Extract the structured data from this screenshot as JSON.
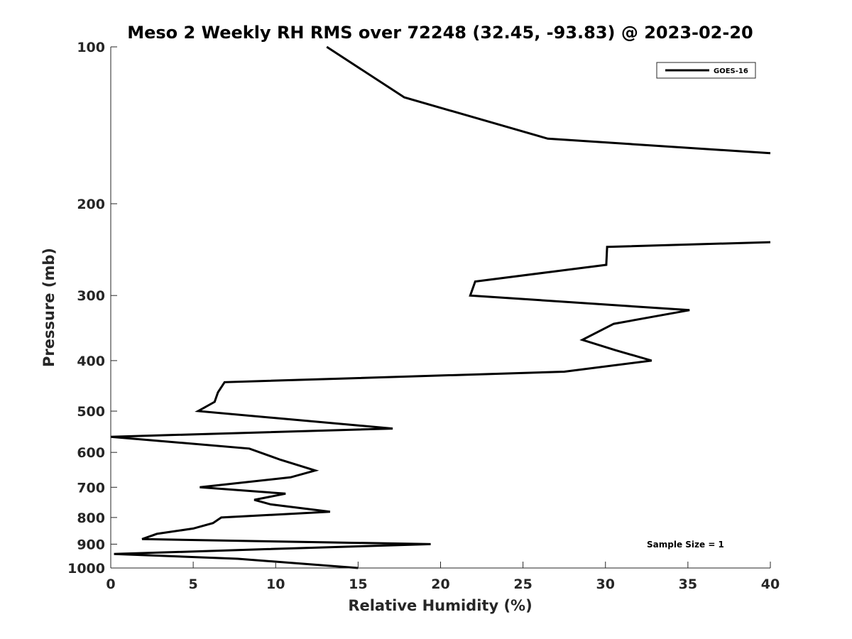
{
  "chart_data": {
    "type": "line",
    "title": "Meso 2 Weekly RH RMS over 72248 (32.45, -93.83) @ 2023-02-20",
    "xlabel": "Relative Humidity (%)",
    "ylabel": "Pressure (mb)",
    "xlim": [
      0,
      40
    ],
    "ylim": [
      100,
      1000
    ],
    "y_scale": "log",
    "y_reversed": true,
    "x_ticks": [
      0,
      5,
      10,
      15,
      20,
      25,
      30,
      35,
      40
    ],
    "y_ticks": [
      100,
      200,
      300,
      400,
      500,
      600,
      700,
      800,
      900,
      1000
    ],
    "grid": false,
    "legend_position": "top-right",
    "annotation": "Sample Size = 1",
    "line_color": "#000000",
    "series": [
      {
        "name": "GOES-16",
        "segments": [
          [
            [
              13.1,
              100
            ],
            [
              17.8,
              125
            ],
            [
              26.5,
              150
            ],
            [
              40.0,
              160
            ]
          ],
          [
            [
              40.0,
              237
            ],
            [
              30.1,
              242
            ],
            [
              30.05,
              262
            ],
            [
              22.1,
              282
            ],
            [
              21.8,
              300
            ],
            [
              35.1,
              320
            ],
            [
              30.5,
              340
            ],
            [
              28.6,
              365
            ],
            [
              30.6,
              382
            ],
            [
              32.8,
              400
            ],
            [
              27.5,
              420
            ],
            [
              6.9,
              440
            ],
            [
              6.5,
              460
            ],
            [
              6.3,
              480
            ],
            [
              5.3,
              500
            ],
            [
              17.1,
              540
            ],
            [
              0.0,
              560
            ],
            [
              8.4,
              590
            ],
            [
              10.3,
              620
            ],
            [
              12.4,
              650
            ],
            [
              10.9,
              670
            ],
            [
              5.4,
              700
            ],
            [
              10.6,
              720
            ],
            [
              8.7,
              740
            ],
            [
              9.7,
              755
            ],
            [
              13.3,
              780
            ],
            [
              6.7,
              800
            ],
            [
              6.2,
              820
            ],
            [
              5.0,
              840
            ],
            [
              2.8,
              860
            ],
            [
              1.9,
              880
            ],
            [
              19.4,
              900
            ],
            [
              9.5,
              920
            ],
            [
              0.2,
              940
            ],
            [
              7.7,
              960
            ],
            [
              15.0,
              1000
            ]
          ]
        ]
      }
    ]
  }
}
